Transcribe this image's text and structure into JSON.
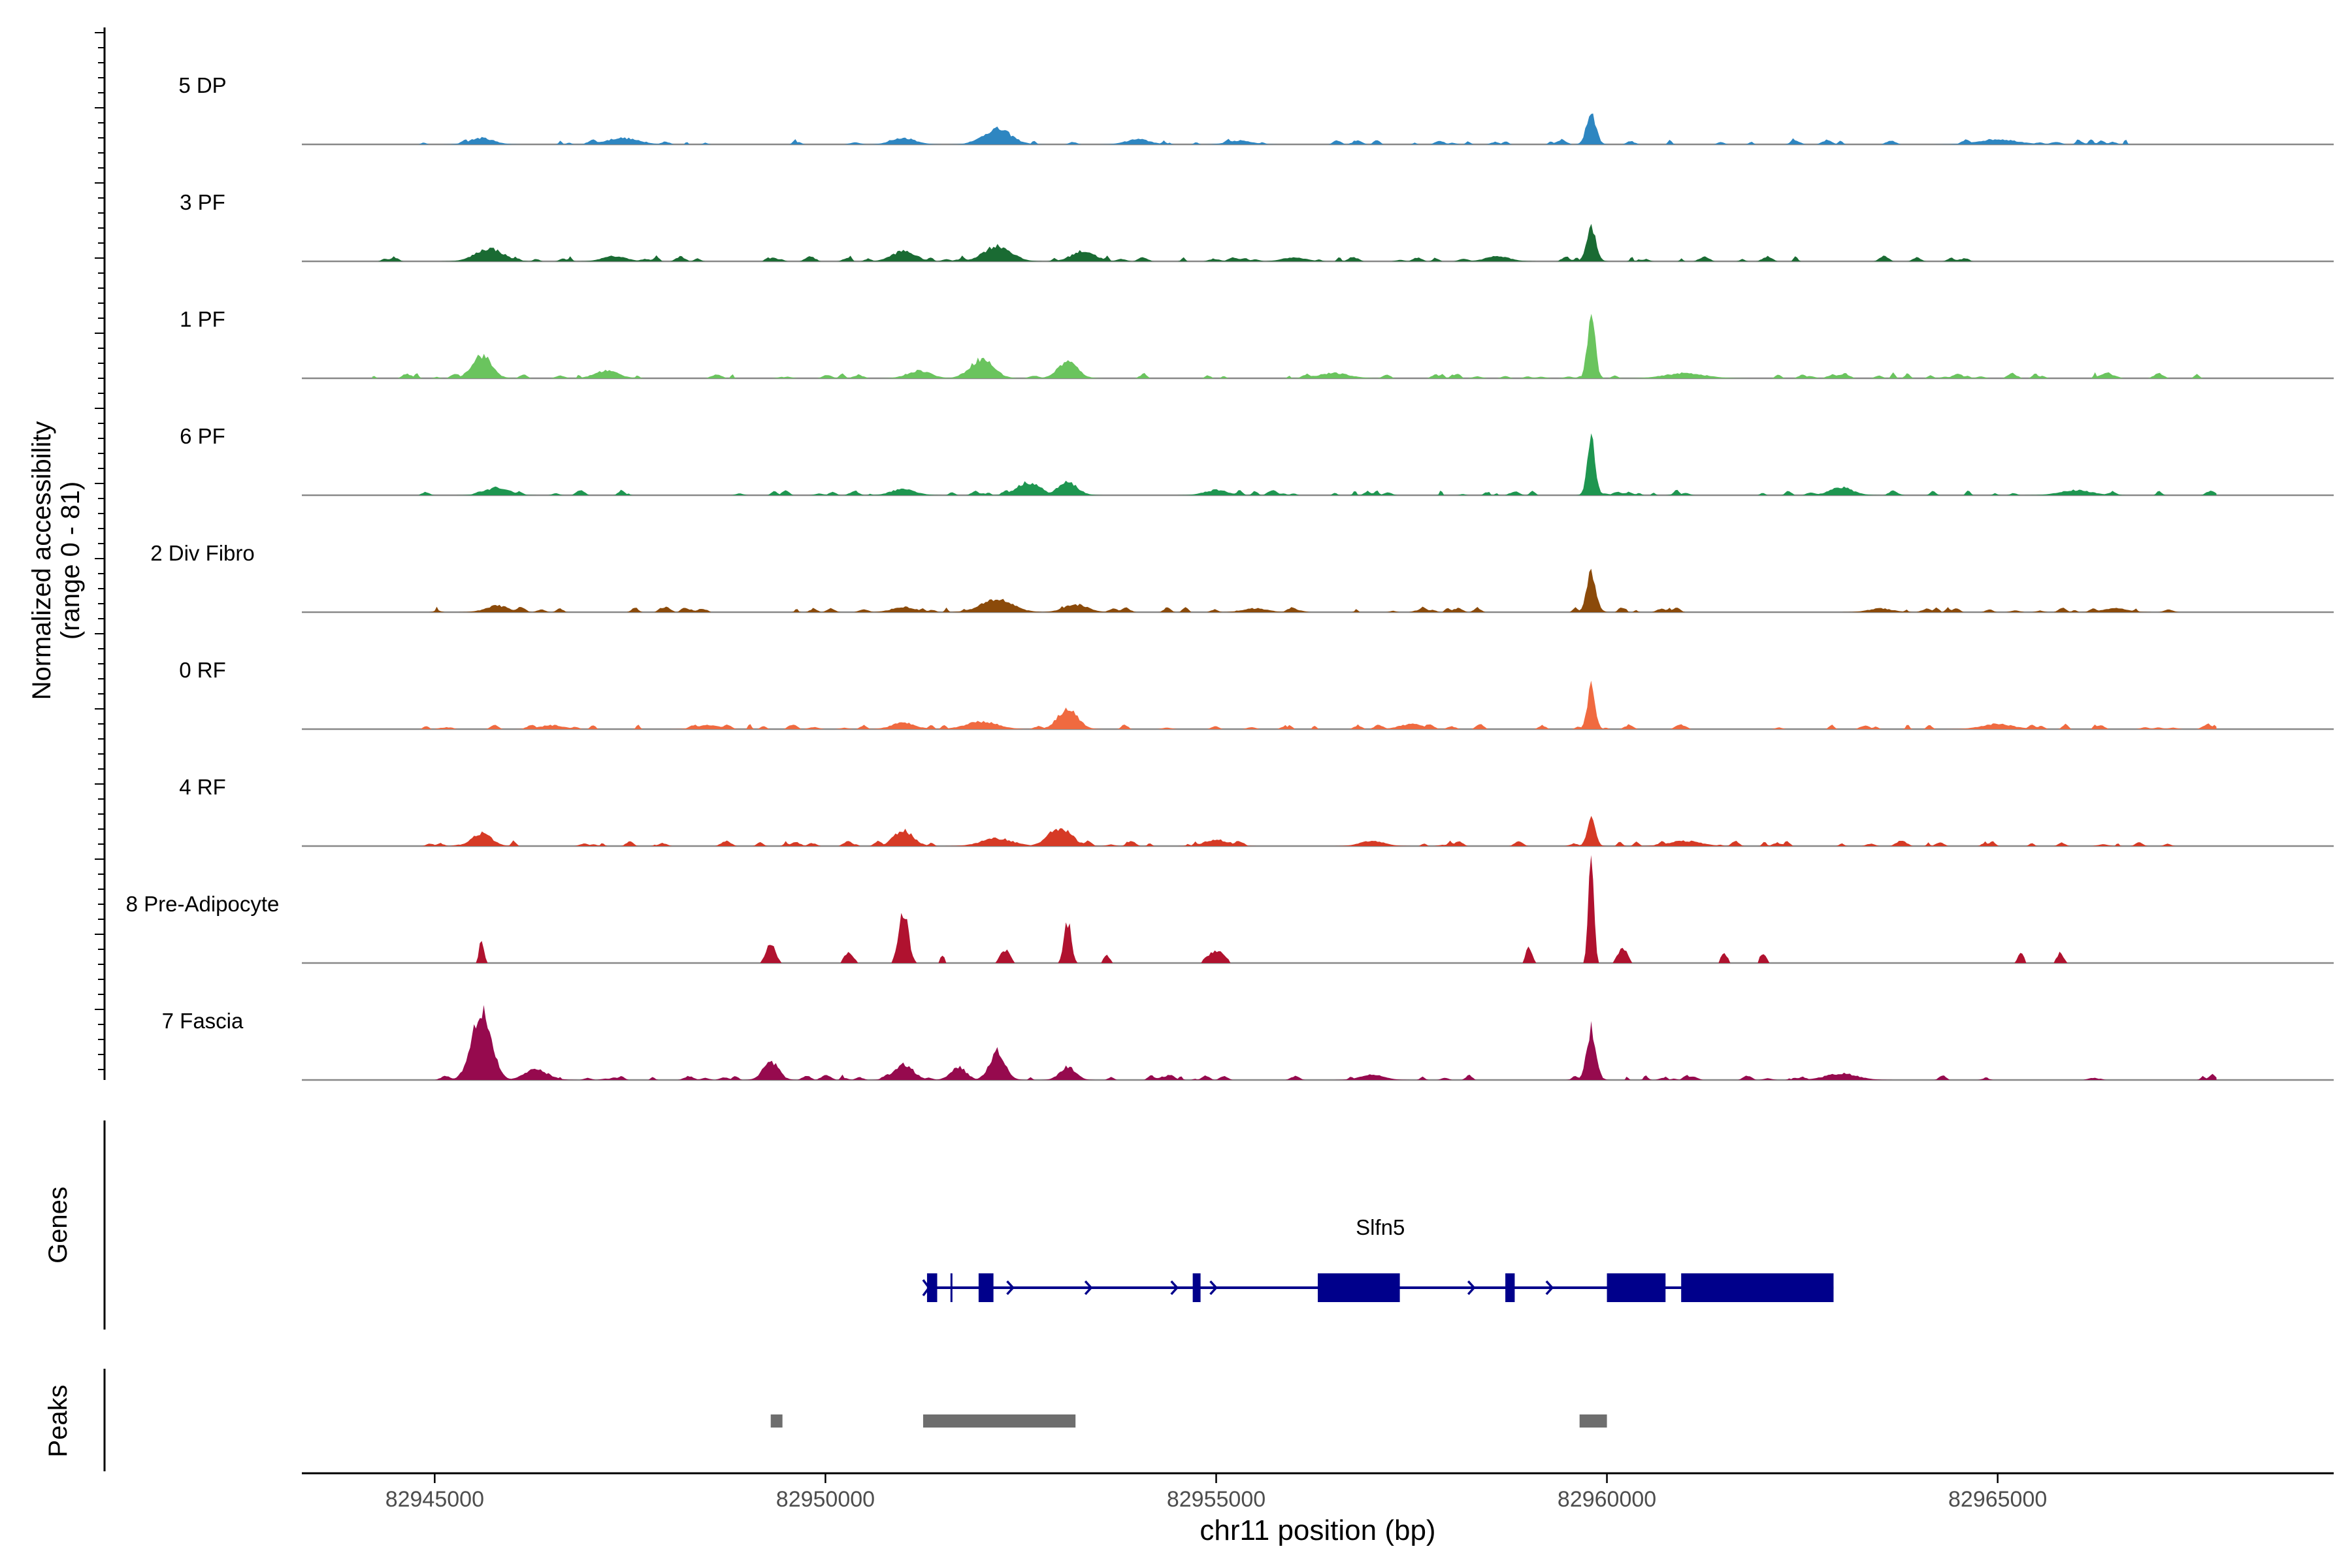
{
  "chart_data": {
    "type": "area",
    "title": "",
    "ylabel_line1": "Normalized accessibility",
    "ylabel_line2": "(range 0 - 81)",
    "ylim": [
      0,
      81
    ],
    "xlabel": "chr11 position (bp)",
    "xlim": [
      82943300,
      82969300
    ],
    "x_ticks": [
      82945000,
      82950000,
      82955000,
      82960000,
      82965000
    ],
    "x_tick_labels": [
      "82945000",
      "82950000",
      "82955000",
      "82960000",
      "82965000"
    ],
    "tracks": [
      {
        "name": "5 DP",
        "color": "#2E86C1",
        "range": [
          82944800,
          82967800
        ],
        "max": 81,
        "sparse": false,
        "peaks": [
          [
            82959800,
            25,
            120
          ],
          [
            82952200,
            12,
            350
          ],
          [
            82945600,
            5,
            300
          ],
          [
            82947400,
            5,
            400
          ],
          [
            82951000,
            5,
            300
          ],
          [
            82954000,
            4,
            300
          ],
          [
            82955300,
            3,
            300
          ],
          [
            82965000,
            4,
            500
          ]
        ]
      },
      {
        "name": "3 PF",
        "color": "#1A6B33",
        "range": [
          82944200,
          82965500
        ],
        "max": 81,
        "sparse": false,
        "peaks": [
          [
            82959800,
            26,
            120
          ],
          [
            82945700,
            10,
            350
          ],
          [
            82952200,
            12,
            350
          ],
          [
            82951000,
            8,
            300
          ],
          [
            82953300,
            8,
            300
          ],
          [
            82947300,
            4,
            300
          ],
          [
            82956000,
            3,
            300
          ],
          [
            82958600,
            4,
            300
          ]
        ]
      },
      {
        "name": "1 PF",
        "color": "#6AC45E",
        "range": [
          82944200,
          82967800
        ],
        "max": 81,
        "sparse": false,
        "peaks": [
          [
            82959800,
            48,
            100
          ],
          [
            82945600,
            18,
            250
          ],
          [
            82952000,
            15,
            300
          ],
          [
            82953100,
            13,
            250
          ],
          [
            82947200,
            6,
            300
          ],
          [
            82951200,
            6,
            300
          ],
          [
            82956500,
            4,
            400
          ],
          [
            82961000,
            4,
            500
          ]
        ]
      },
      {
        "name": "6 PF",
        "color": "#1E9650",
        "range": [
          82944800,
          82967800
        ],
        "max": 81,
        "sparse": false,
        "peaks": [
          [
            82959800,
            45,
            100
          ],
          [
            82945800,
            6,
            300
          ],
          [
            82952600,
            10,
            300
          ],
          [
            82953100,
            10,
            250
          ],
          [
            82951000,
            5,
            300
          ],
          [
            82963000,
            6,
            300
          ],
          [
            82955000,
            4,
            300
          ],
          [
            82966000,
            4,
            400
          ]
        ]
      },
      {
        "name": "2 Div Fibro",
        "color": "#8B4A0A",
        "range": [
          82944700,
          82967400
        ],
        "max": 81,
        "sparse": false,
        "peaks": [
          [
            82959800,
            30,
            120
          ],
          [
            82952200,
            10,
            400
          ],
          [
            82953200,
            6,
            300
          ],
          [
            82945800,
            5,
            300
          ],
          [
            82951000,
            4,
            300
          ],
          [
            82955500,
            3,
            300
          ],
          [
            82963500,
            3,
            300
          ],
          [
            82966500,
            3,
            300
          ]
        ]
      },
      {
        "name": "0 RF",
        "color": "#F06A40",
        "range": [
          82944800,
          82967800
        ],
        "max": 81,
        "sparse": false,
        "peaks": [
          [
            82959800,
            33,
            100
          ],
          [
            82953100,
            16,
            250
          ],
          [
            82952000,
            6,
            400
          ],
          [
            82951000,
            5,
            300
          ],
          [
            82946500,
            3,
            300
          ],
          [
            82957500,
            4,
            300
          ],
          [
            82965000,
            4,
            400
          ],
          [
            82948500,
            3,
            300
          ]
        ]
      },
      {
        "name": "4 RF",
        "color": "#D63A25",
        "range": [
          82944300,
          82967800
        ],
        "max": 81,
        "sparse": false,
        "peaks": [
          [
            82959800,
            24,
            100
          ],
          [
            82945600,
            10,
            250
          ],
          [
            82951000,
            12,
            250
          ],
          [
            82953000,
            14,
            300
          ],
          [
            82952200,
            6,
            400
          ],
          [
            82955000,
            5,
            300
          ],
          [
            82957000,
            4,
            300
          ],
          [
            82961000,
            4,
            400
          ]
        ]
      },
      {
        "name": "8 Pre-Adipocyte",
        "color": "#B0122F",
        "range": [
          82944800,
          82967800
        ],
        "max": 81,
        "sparse": true,
        "peaks": [
          [
            82959800,
            78,
            70
          ],
          [
            82951000,
            40,
            120
          ],
          [
            82953100,
            32,
            90
          ],
          [
            82945600,
            18,
            60
          ],
          [
            82949300,
            14,
            120
          ],
          [
            82955000,
            10,
            200
          ],
          [
            82959000,
            12,
            80
          ],
          [
            82960200,
            12,
            120
          ],
          [
            82952300,
            10,
            120
          ],
          [
            82965300,
            8,
            80
          ],
          [
            82965800,
            8,
            80
          ],
          [
            82950300,
            8,
            120
          ],
          [
            82961500,
            8,
            80
          ],
          [
            82962000,
            8,
            80
          ],
          [
            82953600,
            6,
            80
          ],
          [
            82951500,
            6,
            60
          ]
        ]
      },
      {
        "name": "7 Fascia",
        "color": "#960A4E",
        "range": [
          82944600,
          82967800
        ],
        "max": 81,
        "sparse": false,
        "peaks": [
          [
            82945600,
            55,
            250
          ],
          [
            82959800,
            40,
            120
          ],
          [
            82952200,
            22,
            200
          ],
          [
            82949300,
            14,
            200
          ],
          [
            82951000,
            12,
            250
          ],
          [
            82951700,
            10,
            200
          ],
          [
            82953100,
            10,
            200
          ],
          [
            82946300,
            8,
            300
          ],
          [
            82963000,
            5,
            400
          ],
          [
            82957000,
            4,
            300
          ]
        ]
      }
    ],
    "genes_label": "Genes",
    "gene": {
      "name": "Slfn5",
      "color": "#00008B",
      "start": 82951300,
      "end": 82962900,
      "strand": "+",
      "exons": [
        [
          82951300,
          82951430
        ],
        [
          82951600,
          82951620
        ],
        [
          82951960,
          82952150
        ],
        [
          82954700,
          82954800
        ],
        [
          82956300,
          82957350
        ],
        [
          82958700,
          82958820
        ],
        [
          82960000,
          82960750
        ],
        [
          82960950,
          82962900
        ]
      ],
      "arrows": [
        82952400,
        82953400,
        82954500,
        82955000,
        82958300,
        82959300
      ]
    },
    "peaks_label": "Peaks",
    "peak_regions": [
      [
        82949300,
        82949450
      ],
      [
        82951250,
        82953200
      ],
      [
        82959650,
        82960000
      ]
    ],
    "peak_color": "#6E6E6E"
  }
}
